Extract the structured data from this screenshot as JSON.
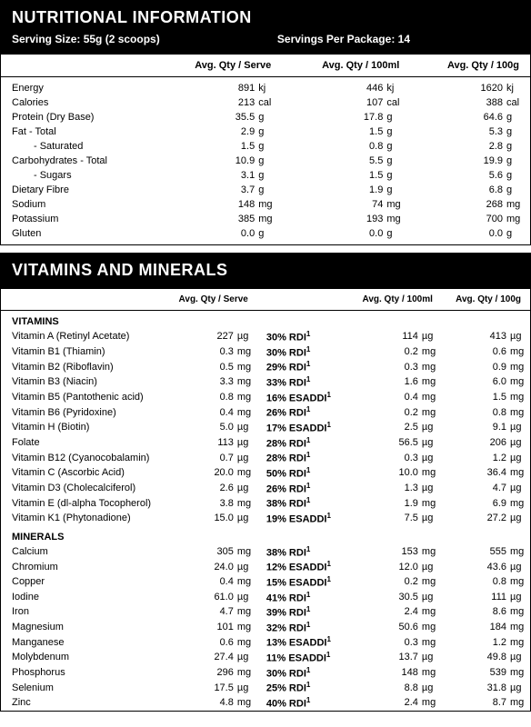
{
  "nutrition": {
    "title": "NUTRITIONAL INFORMATION",
    "serving_size_label": "Serving Size: 55g (2 scoops)",
    "servings_per_package_label": "Servings Per Package: 14",
    "columns": [
      "",
      "Avg. Qty / Serve",
      "Avg. Qty / 100ml",
      "Avg. Qty / 100g"
    ],
    "rows": [
      {
        "name": "Energy",
        "serve": "891",
        "serve_u": "kj",
        "p100ml": "446",
        "p100ml_u": "kj",
        "p100g": "1620",
        "p100g_u": "kj"
      },
      {
        "name": "Calories",
        "serve": "213",
        "serve_u": "cal",
        "p100ml": "107",
        "p100ml_u": "cal",
        "p100g": "388",
        "p100g_u": "cal"
      },
      {
        "name": "Protein (Dry Base)",
        "serve": "35.5",
        "serve_u": "g",
        "p100ml": "17.8",
        "p100ml_u": "g",
        "p100g": "64.6",
        "p100g_u": "g"
      },
      {
        "name": "Fat  - Total",
        "serve": "2.9",
        "serve_u": "g",
        "p100ml": "1.5",
        "p100ml_u": "g",
        "p100g": "5.3",
        "p100g_u": "g"
      },
      {
        "name": "- Saturated",
        "indent": true,
        "serve": "1.5",
        "serve_u": "g",
        "p100ml": "0.8",
        "p100ml_u": "g",
        "p100g": "2.8",
        "p100g_u": "g"
      },
      {
        "name": "Carbohydrates - Total",
        "serve": "10.9",
        "serve_u": "g",
        "p100ml": "5.5",
        "p100ml_u": "g",
        "p100g": "19.9",
        "p100g_u": "g"
      },
      {
        "name": "- Sugars",
        "indent": true,
        "serve": "3.1",
        "serve_u": "g",
        "p100ml": "1.5",
        "p100ml_u": "g",
        "p100g": "5.6",
        "p100g_u": "g"
      },
      {
        "name": "Dietary Fibre",
        "serve": "3.7",
        "serve_u": "g",
        "p100ml": "1.9",
        "p100ml_u": "g",
        "p100g": "6.8",
        "p100g_u": "g"
      },
      {
        "name": "Sodium",
        "serve": "148",
        "serve_u": "mg",
        "p100ml": "74",
        "p100ml_u": "mg",
        "p100g": "268",
        "p100g_u": "mg"
      },
      {
        "name": "Potassium",
        "serve": "385",
        "serve_u": "mg",
        "p100ml": "193",
        "p100ml_u": "mg",
        "p100g": "700",
        "p100g_u": "mg"
      },
      {
        "name": "Gluten",
        "serve": "0.0",
        "serve_u": "g",
        "p100ml": "0.0",
        "p100ml_u": "g",
        "p100g": "0.0",
        "p100g_u": "g"
      }
    ]
  },
  "vitamins": {
    "title": "VITAMINS AND MINERALS",
    "columns": [
      "",
      "Avg. Qty / Serve",
      "",
      "Avg. Qty / 100ml",
      "Avg. Qty / 100g"
    ],
    "section_vitamins": "VITAMINS",
    "section_minerals": "MINERALS",
    "vitamin_rows": [
      {
        "name": "Vitamin A (Retinyl Acetate)",
        "serve": "227",
        "serve_u": "µg",
        "rdi": "30% RDI",
        "sup": "1",
        "p100ml": "114",
        "p100ml_u": "µg",
        "p100g": "413",
        "p100g_u": "µg"
      },
      {
        "name": "Vitamin B1 (Thiamin)",
        "serve": "0.3",
        "serve_u": "mg",
        "rdi": "30% RDI",
        "sup": "1",
        "p100ml": "0.2",
        "p100ml_u": "mg",
        "p100g": "0.6",
        "p100g_u": "mg"
      },
      {
        "name": "Vitamin B2 (Riboflavin)",
        "serve": "0.5",
        "serve_u": "mg",
        "rdi": "29% RDI",
        "sup": "1",
        "p100ml": "0.3",
        "p100ml_u": "mg",
        "p100g": "0.9",
        "p100g_u": "mg"
      },
      {
        "name": "Vitamin B3 (Niacin)",
        "serve": "3.3",
        "serve_u": "mg",
        "rdi": "33% RDI",
        "sup": "1",
        "p100ml": "1.6",
        "p100ml_u": "mg",
        "p100g": "6.0",
        "p100g_u": "mg"
      },
      {
        "name": "Vitamin B5 (Pantothenic acid)",
        "serve": "0.8",
        "serve_u": "mg",
        "rdi": "16% ESADDI",
        "sup": "1",
        "p100ml": "0.4",
        "p100ml_u": "mg",
        "p100g": "1.5",
        "p100g_u": "mg"
      },
      {
        "name": "Vitamin B6 (Pyridoxine)",
        "serve": "0.4",
        "serve_u": "mg",
        "rdi": "26% RDI",
        "sup": "1",
        "p100ml": "0.2",
        "p100ml_u": "mg",
        "p100g": "0.8",
        "p100g_u": "mg"
      },
      {
        "name": "Vitamin H (Biotin)",
        "serve": "5.0",
        "serve_u": "µg",
        "rdi": "17% ESADDI",
        "sup": "1",
        "p100ml": "2.5",
        "p100ml_u": "µg",
        "p100g": "9.1",
        "p100g_u": "µg"
      },
      {
        "name": "Folate",
        "serve": "113",
        "serve_u": "µg",
        "rdi": "28% RDI",
        "sup": "1",
        "p100ml": "56.5",
        "p100ml_u": "µg",
        "p100g": "206",
        "p100g_u": "µg"
      },
      {
        "name": "Vitamin B12 (Cyanocobalamin)",
        "serve": "0.7",
        "serve_u": "µg",
        "rdi": "28% RDI",
        "sup": "1",
        "p100ml": "0.3",
        "p100ml_u": "µg",
        "p100g": "1.2",
        "p100g_u": "µg"
      },
      {
        "name": "Vitamin C (Ascorbic Acid)",
        "serve": "20.0",
        "serve_u": "mg",
        "rdi": "50% RDI",
        "sup": "1",
        "p100ml": "10.0",
        "p100ml_u": "mg",
        "p100g": "36.4",
        "p100g_u": "mg"
      },
      {
        "name": "Vitamin D3 (Cholecalciferol)",
        "serve": "2.6",
        "serve_u": "µg",
        "rdi": "26% RDI",
        "sup": "1",
        "p100ml": "1.3",
        "p100ml_u": "µg",
        "p100g": "4.7",
        "p100g_u": "µg"
      },
      {
        "name": "Vitamin E (dl-alpha Tocopherol)",
        "serve": "3.8",
        "serve_u": "mg",
        "rdi": "38% RDI",
        "sup": "1",
        "p100ml": "1.9",
        "p100ml_u": "mg",
        "p100g": "6.9",
        "p100g_u": "mg"
      },
      {
        "name": "Vitamin K1 (Phytonadione)",
        "serve": "15.0",
        "serve_u": "µg",
        "rdi": "19% ESADDI",
        "sup": "1",
        "p100ml": "7.5",
        "p100ml_u": "µg",
        "p100g": "27.2",
        "p100g_u": "µg"
      }
    ],
    "mineral_rows": [
      {
        "name": "Calcium",
        "serve": "305",
        "serve_u": "mg",
        "rdi": "38% RDI",
        "sup": "1",
        "p100ml": "153",
        "p100ml_u": "mg",
        "p100g": "555",
        "p100g_u": "mg"
      },
      {
        "name": "Chromium",
        "serve": "24.0",
        "serve_u": "µg",
        "rdi": "12% ESADDI",
        "sup": "1",
        "p100ml": "12.0",
        "p100ml_u": "µg",
        "p100g": "43.6",
        "p100g_u": "µg"
      },
      {
        "name": "Copper",
        "serve": "0.4",
        "serve_u": "mg",
        "rdi": "15% ESADDI",
        "sup": "1",
        "p100ml": "0.2",
        "p100ml_u": "mg",
        "p100g": "0.8",
        "p100g_u": "mg"
      },
      {
        "name": "Iodine",
        "serve": "61.0",
        "serve_u": "µg",
        "rdi": "41% RDI",
        "sup": "1",
        "p100ml": "30.5",
        "p100ml_u": "µg",
        "p100g": "111",
        "p100g_u": "µg"
      },
      {
        "name": "Iron",
        "serve": "4.7",
        "serve_u": "mg",
        "rdi": "39% RDI",
        "sup": "1",
        "p100ml": "2.4",
        "p100ml_u": "mg",
        "p100g": "8.6",
        "p100g_u": "mg"
      },
      {
        "name": "Magnesium",
        "serve": "101",
        "serve_u": "mg",
        "rdi": "32% RDI",
        "sup": "1",
        "p100ml": "50.6",
        "p100ml_u": "mg",
        "p100g": "184",
        "p100g_u": "mg"
      },
      {
        "name": "Manganese",
        "serve": "0.6",
        "serve_u": "mg",
        "rdi": "13% ESADDI",
        "sup": "1",
        "p100ml": "0.3",
        "p100ml_u": "mg",
        "p100g": "1.2",
        "p100g_u": "mg"
      },
      {
        "name": "Molybdenum",
        "serve": "27.4",
        "serve_u": "µg",
        "rdi": "11% ESADDI",
        "sup": "1",
        "p100ml": "13.7",
        "p100ml_u": "µg",
        "p100g": "49.8",
        "p100g_u": "µg"
      },
      {
        "name": "Phosphorus",
        "serve": "296",
        "serve_u": "mg",
        "rdi": "30% RDI",
        "sup": "1",
        "p100ml": "148",
        "p100ml_u": "mg",
        "p100g": "539",
        "p100g_u": "mg"
      },
      {
        "name": "Selenium",
        "serve": "17.5",
        "serve_u": "µg",
        "rdi": "25% RDI",
        "sup": "1",
        "p100ml": "8.8",
        "p100ml_u": "µg",
        "p100g": "31.8",
        "p100g_u": "µg"
      },
      {
        "name": "Zinc",
        "serve": "4.8",
        "serve_u": "mg",
        "rdi": "40% RDI",
        "sup": "1",
        "p100ml": "2.4",
        "p100ml_u": "mg",
        "p100g": "8.7",
        "p100g_u": "mg"
      }
    ]
  },
  "colors": {
    "header_bg": "#000000",
    "header_fg": "#ffffff",
    "border": "#000000",
    "text": "#000000"
  }
}
